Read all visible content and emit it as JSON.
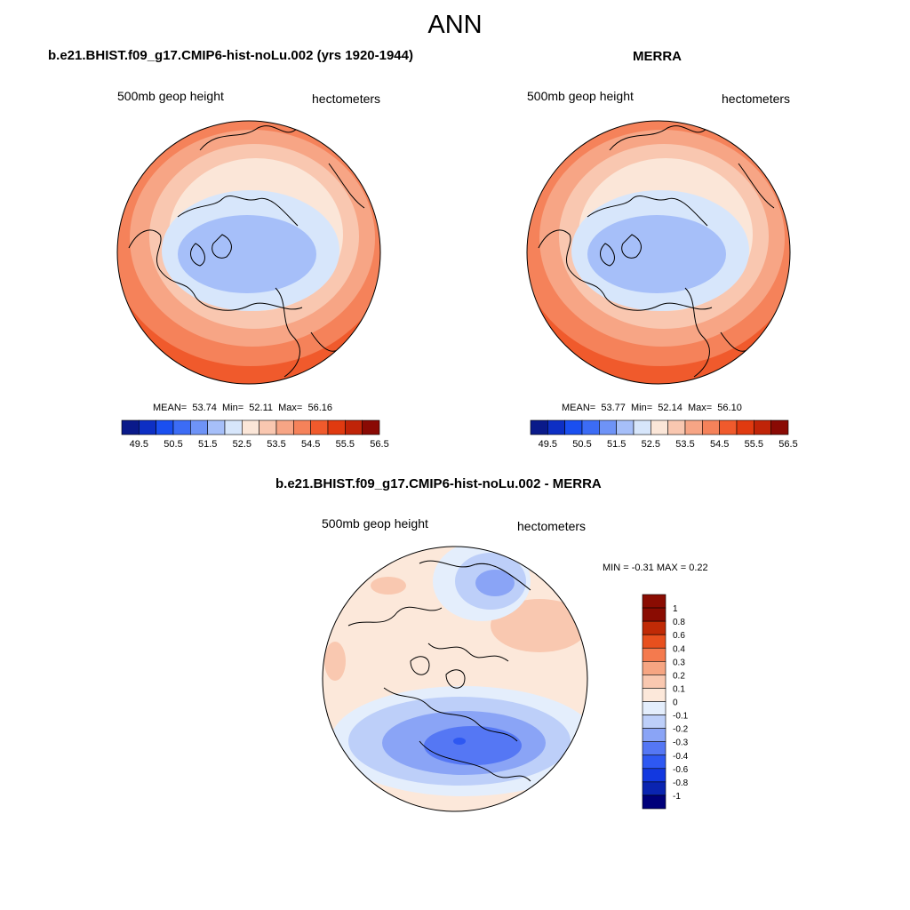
{
  "title": "ANN",
  "colors": {
    "abs_scale": [
      "#0a1a8a",
      "#0d2fc4",
      "#1a4ff0",
      "#3c6cf5",
      "#6e93f7",
      "#a6bff9",
      "#d7e6fb",
      "#fbe6d8",
      "#f9c7b0",
      "#f7a585",
      "#f5825a",
      "#f05a2c",
      "#e03a10",
      "#c02408",
      "#8a0a04"
    ],
    "diff_scale": [
      "#00007a",
      "#0a24b0",
      "#1238e0",
      "#2e58f2",
      "#5577f4",
      "#8aa4f6",
      "#bdcff9",
      "#e4eefc",
      "#fce8da",
      "#f9c8b0",
      "#f6a582",
      "#f47a4e",
      "#e8501e",
      "#c02a06",
      "#8a0c02"
    ]
  },
  "panels": [
    {
      "id": "model",
      "title": "b.e21.BHIST.f09_g17.CMIP6-hist-noLu.002 (yrs 1920-1944)",
      "variable": "500mb geop height",
      "units": "hectometers",
      "stats": {
        "mean_label": "MEAN=",
        "mean": "53.74",
        "min_label": "Min=",
        "min": "52.11",
        "max_label": "Max=",
        "max": "56.16"
      },
      "colorbar_ticks": [
        "49.5",
        "50.5",
        "51.5",
        "52.5",
        "53.5",
        "54.5",
        "55.5",
        "56.5"
      ]
    },
    {
      "id": "obs",
      "title": "MERRA",
      "variable": "500mb geop height",
      "units": "hectometers",
      "stats": {
        "mean_label": "MEAN=",
        "mean": "53.77",
        "min_label": "Min=",
        "min": "52.14",
        "max_label": "Max=",
        "max": "56.10"
      },
      "colorbar_ticks": [
        "49.5",
        "50.5",
        "51.5",
        "52.5",
        "53.5",
        "54.5",
        "55.5",
        "56.5"
      ]
    },
    {
      "id": "diff",
      "title": "b.e21.BHIST.f09_g17.CMIP6-hist-noLu.002 - MERRA",
      "variable": "500mb geop height",
      "units": "hectometers",
      "minmax": "MIN =  -0.31 MAX =   0.22",
      "colorbar_ticks": [
        "1",
        "0.8",
        "0.6",
        "0.4",
        "0.3",
        "0.2",
        "0.1",
        "0",
        "-0.1",
        "-0.2",
        "-0.3",
        "-0.4",
        "-0.6",
        "-0.8",
        "-1"
      ]
    }
  ]
}
